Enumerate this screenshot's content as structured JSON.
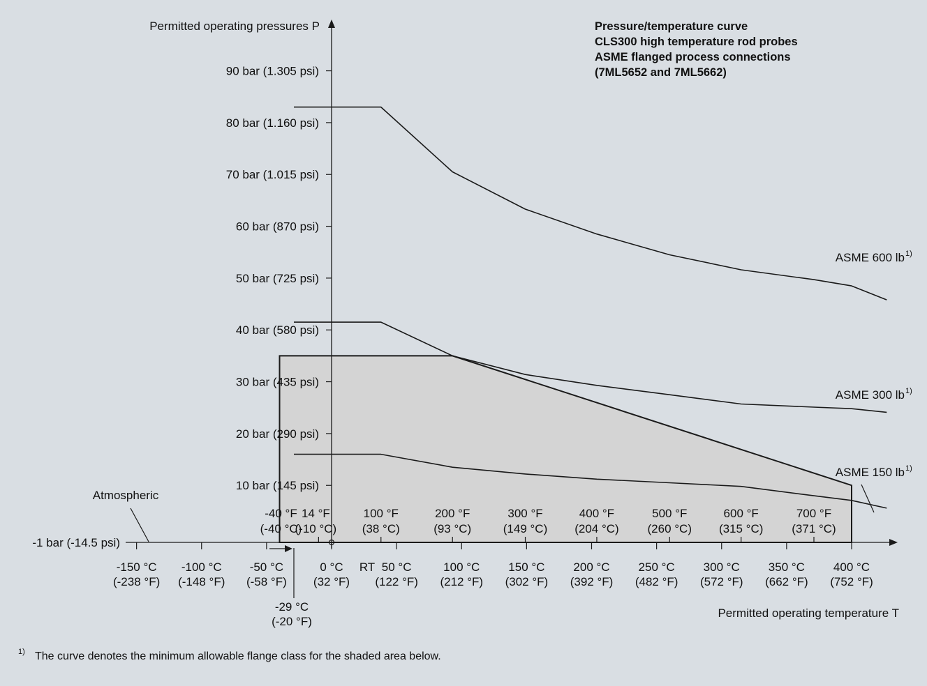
{
  "chart_data": {
    "type": "line",
    "title_lines": [
      "Pressure/temperature curve",
      "CLS300 high temperature rod probes",
      "ASME flanged process connections",
      "(7ML5652 and 7ML5662)"
    ],
    "ylabel": "Permitted operating pressures P",
    "xlabel": "Permitted operating temperature T",
    "y_ticks": [
      {
        "value": 90,
        "label": "90 bar (1.305 psi)"
      },
      {
        "value": 80,
        "label": "80 bar (1.160 psi)"
      },
      {
        "value": 70,
        "label": "70 bar (1.015 psi)"
      },
      {
        "value": 60,
        "label": "60 bar (870 psi)"
      },
      {
        "value": 50,
        "label": "50 bar (725 psi)"
      },
      {
        "value": 40,
        "label": "40 bar (580 psi)"
      },
      {
        "value": 30,
        "label": "30 bar (435 psi)"
      },
      {
        "value": 20,
        "label": "20 bar (290 psi)"
      },
      {
        "value": 10,
        "label": "10 bar (145 psi)"
      },
      {
        "value": -1,
        "label": "-1 bar (-14.5 psi)"
      }
    ],
    "atmospheric_label": "Atmospheric",
    "x_ticks_celsius": [
      {
        "value": -150,
        "l1": "-150 °C",
        "l2": "(-238 °F)"
      },
      {
        "value": -100,
        "l1": "-100 °C",
        "l2": "(-148 °F)"
      },
      {
        "value": -50,
        "l1": "-50 °C",
        "l2": "(-58 °F)"
      },
      {
        "value": 0,
        "l1": "0 °C",
        "l2": "(32 °F)"
      },
      {
        "value": 50,
        "l1": "50 °C",
        "l2": "(122 °F)"
      },
      {
        "value": 100,
        "l1": "100 °C",
        "l2": "(212 °F)"
      },
      {
        "value": 150,
        "l1": "150 °C",
        "l2": "(302 °F)"
      },
      {
        "value": 200,
        "l1": "200 °C",
        "l2": "(392 °F)"
      },
      {
        "value": 250,
        "l1": "250 °C",
        "l2": "(482 °F)"
      },
      {
        "value": 300,
        "l1": "300 °C",
        "l2": "(572 °F)"
      },
      {
        "value": 350,
        "l1": "350 °C",
        "l2": "(662 °F)"
      },
      {
        "value": 400,
        "l1": "400 °C",
        "l2": "(752 °F)"
      }
    ],
    "rt_label": "RT",
    "low_limit": {
      "value": -29,
      "l1": "-29 °C",
      "l2": "(-20 °F)"
    },
    "x_ticks_fahrenheit": [
      {
        "value": -40,
        "l1": "-40 °F",
        "l2": "(-40 °C)"
      },
      {
        "value": -10,
        "l1": "14 °F",
        "l2": "(-10 °C)"
      },
      {
        "value": 38,
        "l1": "100 °F",
        "l2": "(38 °C)"
      },
      {
        "value": 93,
        "l1": "200 °F",
        "l2": "(93 °C)"
      },
      {
        "value": 149,
        "l1": "300 °F",
        "l2": "(149 °C)"
      },
      {
        "value": 204,
        "l1": "400 °F",
        "l2": "(204 °C)"
      },
      {
        "value": 260,
        "l1": "500 °F",
        "l2": "(260 °C)"
      },
      {
        "value": 315,
        "l1": "600 °F",
        "l2": "(315 °C)"
      },
      {
        "value": 371,
        "l1": "700 °F",
        "l2": "(371 °C)"
      }
    ],
    "series": [
      {
        "name": "ASME 600 lb",
        "sup": "1)",
        "points": [
          [
            -29,
            83.0
          ],
          [
            38,
            83.0
          ],
          [
            93,
            70.5
          ],
          [
            149,
            63.3
          ],
          [
            204,
            58.5
          ],
          [
            260,
            54.5
          ],
          [
            315,
            51.6
          ],
          [
            371,
            49.7
          ],
          [
            400,
            48.5
          ],
          [
            427,
            45.8
          ]
        ]
      },
      {
        "name": "ASME 300 lb",
        "sup": "1)",
        "points": [
          [
            -29,
            41.5
          ],
          [
            38,
            41.5
          ],
          [
            93,
            35.0
          ],
          [
            149,
            31.4
          ],
          [
            204,
            29.3
          ],
          [
            260,
            27.5
          ],
          [
            315,
            25.7
          ],
          [
            371,
            25.1
          ],
          [
            400,
            24.8
          ],
          [
            427,
            24.1
          ]
        ]
      },
      {
        "name": "ASME 150 lb",
        "sup": "1)",
        "points": [
          [
            -29,
            16.0
          ],
          [
            38,
            16.0
          ],
          [
            93,
            13.5
          ],
          [
            149,
            12.2
          ],
          [
            204,
            11.2
          ],
          [
            260,
            10.5
          ],
          [
            315,
            9.8
          ],
          [
            371,
            8.0
          ],
          [
            400,
            7.1
          ],
          [
            427,
            5.6
          ]
        ]
      }
    ],
    "shaded_region": {
      "points": [
        [
          -40,
          -1
        ],
        [
          -40,
          35
        ],
        [
          93,
          35
        ],
        [
          400,
          10
        ],
        [
          400,
          -1
        ]
      ]
    },
    "footnote_marker": "1)",
    "footnote": "The curve denotes the minimum allowable flange class for the shaded area below.",
    "colors": {
      "background": "#d9dee3",
      "line": "#1a1a1a",
      "shade": "#d4d4d4"
    }
  }
}
